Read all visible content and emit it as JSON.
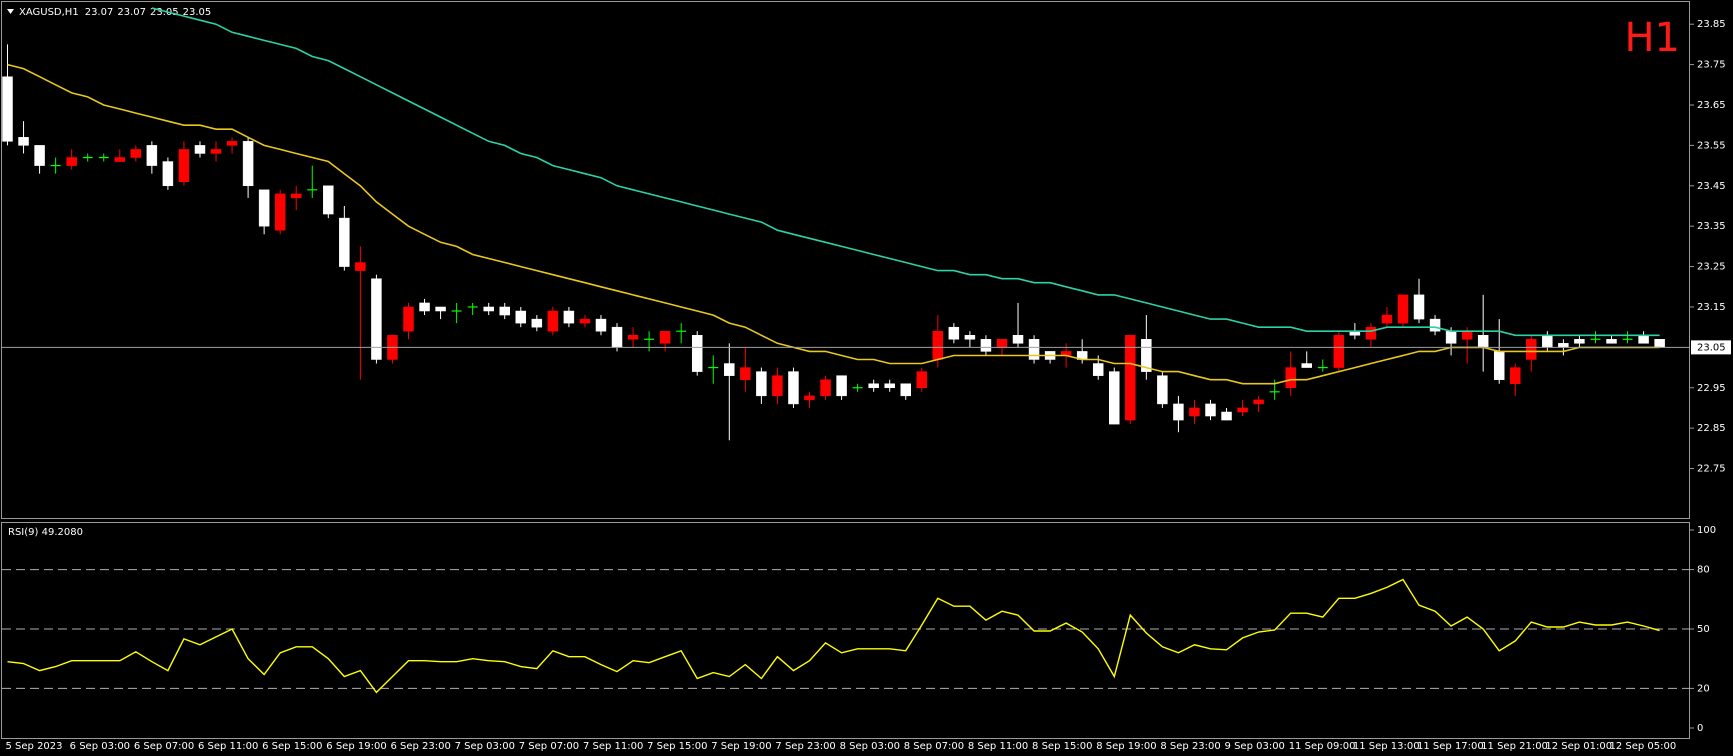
{
  "chart_data": [
    {
      "type": "candlestick",
      "title": "XAGUSD,H1",
      "timeframe": "H1",
      "categories": [
        "5 Sep 2023",
        null,
        null,
        null,
        "6 Sep 03:00",
        null,
        null,
        null,
        "6 Sep 07:00",
        null,
        null,
        null,
        "6 Sep 11:00",
        null,
        null,
        null,
        "6 Sep 15:00",
        null,
        null,
        null,
        "6 Sep 19:00",
        null,
        null,
        null,
        "6 Sep 23:00",
        null,
        null,
        null,
        "7 Sep 03:00",
        null,
        null,
        null,
        "7 Sep 07:00",
        null,
        null,
        null,
        "7 Sep 11:00",
        null,
        null,
        null,
        "7 Sep 15:00",
        null,
        null,
        null,
        "7 Sep 19:00",
        null,
        null,
        null,
        "7 Sep 23:00",
        null,
        null,
        null,
        "8 Sep 03:00",
        null,
        null,
        null,
        "8 Sep 07:00",
        null,
        null,
        null,
        "8 Sep 11:00",
        null,
        null,
        null,
        "8 Sep 15:00",
        null,
        null,
        null,
        "8 Sep 19:00",
        null,
        null,
        null,
        "8 Sep 23:00",
        null,
        null,
        null,
        "9 Sep 03:00",
        null,
        null,
        null,
        "11 Sep 09:00",
        null,
        null,
        null,
        "11 Sep 13:00",
        null,
        null,
        null,
        "11 Sep 17:00",
        null,
        null,
        null,
        "11 Sep 21:00",
        null,
        null,
        null,
        "12 Sep 01:00",
        null,
        null,
        null,
        "12 Sep 05:00",
        null,
        null,
        null
      ],
      "open": [
        23.72,
        23.57,
        23.55,
        23.5,
        23.5,
        23.52,
        23.52,
        23.51,
        23.52,
        23.55,
        23.51,
        23.46,
        23.55,
        23.53,
        23.55,
        23.56,
        23.44,
        23.34,
        23.42,
        23.44,
        23.45,
        23.37,
        23.24,
        23.22,
        23.02,
        23.09,
        23.16,
        23.15,
        23.14,
        23.15,
        23.15,
        23.15,
        23.14,
        23.12,
        23.09,
        23.14,
        23.11,
        23.12,
        23.1,
        23.07,
        23.07,
        23.06,
        23.09,
        23.08,
        23.0,
        23.01,
        22.97,
        22.99,
        22.93,
        22.99,
        22.92,
        22.93,
        22.98,
        22.95,
        22.96,
        22.96,
        22.96,
        22.95,
        23.02,
        23.1,
        23.08,
        23.07,
        23.05,
        23.08,
        23.07,
        23.04,
        23.03,
        23.04,
        23.01,
        22.99,
        22.87,
        23.07,
        22.98,
        22.91,
        22.88,
        22.91,
        22.89,
        22.89,
        22.91,
        22.94,
        22.95,
        23.01,
        23.0,
        23.0,
        23.09,
        23.07,
        23.11,
        23.11,
        23.18,
        23.12,
        23.09,
        23.07,
        23.08,
        23.04,
        22.96,
        23.02,
        23.08,
        23.06,
        23.07,
        23.07,
        23.07,
        23.07,
        23.08,
        23.07
      ],
      "high": [
        23.8,
        23.61,
        23.55,
        23.52,
        23.54,
        23.53,
        23.53,
        23.54,
        23.55,
        23.56,
        23.52,
        23.56,
        23.56,
        23.56,
        23.57,
        23.57,
        23.44,
        23.44,
        23.45,
        23.5,
        23.45,
        23.4,
        23.3,
        23.23,
        23.08,
        23.16,
        23.17,
        23.15,
        23.16,
        23.16,
        23.16,
        23.16,
        23.15,
        23.13,
        23.15,
        23.15,
        23.13,
        23.13,
        23.11,
        23.1,
        23.09,
        23.09,
        23.11,
        23.09,
        23.03,
        23.06,
        23.05,
        23.0,
        23.0,
        23.0,
        22.94,
        22.98,
        22.98,
        22.96,
        22.97,
        22.97,
        22.96,
        23.0,
        23.13,
        23.11,
        23.09,
        23.08,
        23.07,
        23.16,
        23.08,
        23.04,
        23.06,
        23.07,
        23.03,
        23.0,
        23.08,
        23.13,
        22.99,
        22.93,
        22.92,
        22.92,
        22.9,
        22.92,
        22.93,
        22.97,
        23.04,
        23.04,
        23.02,
        23.09,
        23.11,
        23.11,
        23.15,
        23.18,
        23.22,
        23.13,
        23.1,
        23.1,
        23.18,
        23.12,
        23.01,
        23.08,
        23.09,
        23.07,
        23.08,
        23.09,
        23.08,
        23.09,
        23.09,
        23.07
      ],
      "low": [
        23.55,
        23.53,
        23.48,
        23.48,
        23.49,
        23.51,
        23.51,
        23.51,
        23.51,
        23.48,
        23.44,
        23.45,
        23.52,
        23.51,
        23.53,
        23.42,
        23.33,
        23.33,
        23.39,
        23.42,
        23.37,
        23.24,
        22.97,
        23.01,
        23.01,
        23.07,
        23.13,
        23.12,
        23.11,
        23.13,
        23.13,
        23.12,
        23.1,
        23.09,
        23.08,
        23.1,
        23.1,
        23.08,
        23.04,
        23.05,
        23.04,
        23.04,
        23.06,
        22.98,
        22.96,
        22.82,
        22.94,
        22.91,
        22.91,
        22.9,
        22.9,
        22.92,
        22.92,
        22.94,
        22.94,
        22.94,
        22.92,
        22.94,
        23.0,
        23.06,
        23.05,
        23.03,
        23.03,
        23.05,
        23.01,
        23.01,
        23.0,
        23.01,
        22.97,
        22.86,
        22.86,
        22.97,
        22.9,
        22.84,
        22.86,
        22.87,
        22.87,
        22.88,
        22.89,
        22.92,
        22.93,
        23.0,
        22.99,
        22.99,
        23.07,
        23.05,
        23.1,
        23.1,
        23.11,
        23.08,
        23.03,
        23.01,
        22.99,
        22.96,
        22.93,
        22.99,
        23.04,
        23.03,
        23.05,
        23.06,
        23.06,
        23.06,
        23.06,
        23.05
      ],
      "close": [
        23.56,
        23.55,
        23.5,
        23.5,
        23.52,
        23.52,
        23.52,
        23.52,
        23.54,
        23.5,
        23.45,
        23.54,
        23.53,
        23.54,
        23.56,
        23.45,
        23.35,
        23.43,
        23.43,
        23.44,
        23.38,
        23.25,
        23.26,
        23.02,
        23.08,
        23.15,
        23.14,
        23.14,
        23.14,
        23.15,
        23.14,
        23.13,
        23.11,
        23.1,
        23.14,
        23.11,
        23.12,
        23.09,
        23.05,
        23.08,
        23.07,
        23.09,
        23.09,
        22.99,
        23.0,
        22.98,
        23.0,
        22.93,
        22.98,
        22.91,
        22.93,
        22.97,
        22.93,
        22.95,
        22.95,
        22.95,
        22.93,
        22.99,
        23.09,
        23.07,
        23.07,
        23.04,
        23.07,
        23.06,
        23.02,
        23.02,
        23.04,
        23.02,
        22.98,
        22.86,
        23.08,
        22.99,
        22.91,
        22.87,
        22.9,
        22.88,
        22.87,
        22.9,
        22.92,
        22.94,
        23.0,
        23.0,
        23.0,
        23.08,
        23.08,
        23.1,
        23.13,
        23.18,
        23.12,
        23.09,
        23.06,
        23.09,
        23.05,
        22.97,
        23.0,
        23.07,
        23.05,
        23.05,
        23.06,
        23.07,
        23.06,
        23.07,
        23.06,
        23.05
      ],
      "up_color": "#ff0000",
      "down_color": "#ffffff",
      "doji_color": "#00ff00",
      "lines": [
        {
          "color": "#2bd3a6",
          "values": [
            null,
            null,
            null,
            null,
            null,
            null,
            null,
            null,
            null,
            23.89,
            23.88,
            23.87,
            23.86,
            23.85,
            23.83,
            23.82,
            23.81,
            23.8,
            23.79,
            23.77,
            23.76,
            23.74,
            23.72,
            23.7,
            23.68,
            23.66,
            23.64,
            23.62,
            23.6,
            23.58,
            23.56,
            23.55,
            23.53,
            23.52,
            23.5,
            23.49,
            23.48,
            23.47,
            23.45,
            23.44,
            23.43,
            23.42,
            23.41,
            23.4,
            23.39,
            23.38,
            23.37,
            23.36,
            23.34,
            23.33,
            23.32,
            23.31,
            23.3,
            23.29,
            23.28,
            23.27,
            23.26,
            23.25,
            23.24,
            23.24,
            23.23,
            23.23,
            23.22,
            23.22,
            23.21,
            23.21,
            23.2,
            23.19,
            23.18,
            23.18,
            23.17,
            23.16,
            23.15,
            23.14,
            23.13,
            23.12,
            23.12,
            23.11,
            23.1,
            23.1,
            23.1,
            23.09,
            23.09,
            23.09,
            23.09,
            23.09,
            23.1,
            23.1,
            23.1,
            23.1,
            23.09,
            23.09,
            23.09,
            23.09,
            23.08,
            23.08,
            23.08,
            23.08,
            23.08,
            23.08,
            23.08,
            23.08,
            23.08,
            23.08
          ]
        },
        {
          "color": "#e8c81c",
          "values": [
            23.75,
            23.74,
            23.72,
            23.7,
            23.68,
            23.67,
            23.65,
            23.64,
            23.63,
            23.62,
            23.61,
            23.6,
            23.6,
            23.59,
            23.59,
            23.57,
            23.55,
            23.54,
            23.53,
            23.52,
            23.51,
            23.48,
            23.45,
            23.41,
            23.38,
            23.35,
            23.33,
            23.31,
            23.3,
            23.28,
            23.27,
            23.26,
            23.25,
            23.24,
            23.23,
            23.22,
            23.21,
            23.2,
            23.19,
            23.18,
            23.17,
            23.16,
            23.15,
            23.14,
            23.13,
            23.11,
            23.1,
            23.08,
            23.06,
            23.05,
            23.04,
            23.04,
            23.03,
            23.02,
            23.02,
            23.01,
            23.01,
            23.01,
            23.02,
            23.03,
            23.03,
            23.03,
            23.03,
            23.03,
            23.03,
            23.03,
            23.03,
            23.02,
            23.02,
            23.01,
            23.01,
            23.0,
            22.99,
            22.99,
            22.98,
            22.97,
            22.97,
            22.96,
            22.96,
            22.96,
            22.97,
            22.97,
            22.98,
            22.99,
            23.0,
            23.01,
            23.02,
            23.03,
            23.04,
            23.04,
            23.05,
            23.05,
            23.05,
            23.04,
            23.04,
            23.04,
            23.04,
            23.04,
            23.05,
            23.05,
            23.05,
            23.05,
            23.05,
            23.05
          ]
        }
      ],
      "ylim": [
        22.64,
        23.9
      ],
      "yticks": [
        23.85,
        23.75,
        23.65,
        23.55,
        23.45,
        23.35,
        23.25,
        23.15,
        22.95,
        22.85,
        22.75
      ]
    },
    {
      "type": "line",
      "title": "RSI(9) 49.2080",
      "color": "#ffff00",
      "values": [
        33.5,
        32.6,
        29,
        31,
        34,
        34,
        34,
        34,
        38.5,
        33.5,
        29,
        45,
        42,
        46,
        50,
        35,
        27,
        38,
        41,
        41,
        35,
        26,
        29,
        18,
        26,
        34,
        34,
        33.5,
        33.5,
        35,
        34,
        33.5,
        31,
        30,
        39,
        36,
        36,
        32,
        28.5,
        34,
        33,
        36,
        39,
        25,
        28,
        26,
        32,
        25,
        36,
        29,
        34,
        43,
        38,
        40,
        40,
        40,
        39,
        52,
        65.5,
        61.5,
        61.5,
        54.5,
        59,
        57,
        49,
        49,
        53,
        48.5,
        40,
        26,
        57,
        48,
        41,
        38,
        42,
        40,
        39.5,
        45.5,
        48.5,
        49.5,
        58,
        58,
        56,
        65.5,
        65.5,
        68,
        71,
        75,
        62,
        59,
        51.5,
        56,
        50,
        39,
        44,
        53.5,
        51,
        51,
        53.5,
        52,
        52,
        53.5,
        51.5,
        49.21
      ],
      "ylim": [
        0,
        100
      ],
      "yticks": [
        100,
        80,
        50,
        20,
        0
      ],
      "levels": [
        80,
        50,
        20
      ]
    }
  ]
}
